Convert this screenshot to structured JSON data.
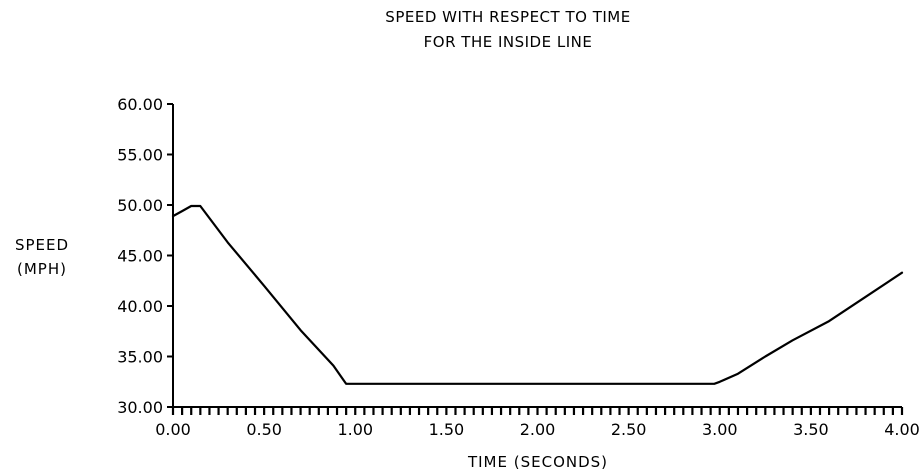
{
  "chart_data": {
    "type": "line",
    "title_lines": [
      "SPEED WITH RESPECT TO TIME",
      "FOR THE INSIDE LINE"
    ],
    "xlabel": "TIME (SECONDS)",
    "ylabel_lines": [
      "SPEED",
      "(MPH)"
    ],
    "xlim": [
      0,
      4
    ],
    "ylim": [
      30,
      60
    ],
    "x_ticks": [
      0,
      0.5,
      1,
      1.5,
      2,
      2.5,
      3,
      3.5,
      4
    ],
    "x_tick_labels": [
      "0.00",
      "0.50",
      "1.00",
      "1.50",
      "2.00",
      "2.50",
      "3.00",
      "3.50",
      "4.00"
    ],
    "y_ticks": [
      30,
      35,
      40,
      45,
      50,
      55,
      60
    ],
    "y_tick_labels": [
      "30.00",
      "35.00",
      "40.00",
      "45.00",
      "50.00",
      "55.00",
      "60.00"
    ],
    "x_minor_tick_step": 0.05,
    "grid": false,
    "series": [
      {
        "x": [
          0.0,
          0.05,
          0.1,
          0.15,
          0.3,
          0.5,
          0.7,
          0.88,
          0.95,
          1.0,
          1.5,
          2.0,
          2.5,
          2.97,
          3.0,
          3.1,
          3.25,
          3.4,
          3.6,
          3.8,
          4.0
        ],
        "y": [
          48.9,
          49.4,
          49.9,
          49.9,
          46.3,
          42.0,
          37.6,
          34.1,
          32.3,
          32.3,
          32.3,
          32.3,
          32.3,
          32.3,
          32.5,
          33.3,
          35.0,
          36.6,
          38.5,
          40.9,
          43.3
        ],
        "color": "#000000"
      }
    ]
  }
}
